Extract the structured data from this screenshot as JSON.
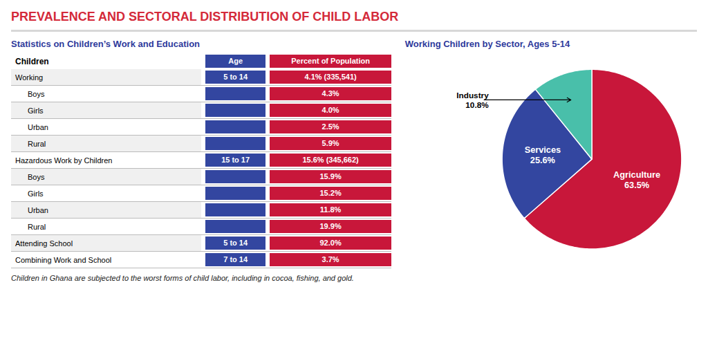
{
  "title": "PREVALENCE AND SECTORAL DISTRIBUTION OF CHILD LABOR",
  "footer": "Children in Ghana are subjected to the worst forms of child labor, including in cocoa, fishing, and gold.",
  "chart_data": [
    {
      "type": "table",
      "title": "Statistics on Children’s Work and Education",
      "columns": [
        "Children",
        "Age",
        "Percent of Population"
      ],
      "colors": [
        "#3346a0",
        "#c8173a"
      ],
      "rows": [
        {
          "label": "Working",
          "age": "5 to 14",
          "pct": "4.1% (335,541)"
        },
        {
          "label": "Boys",
          "age": null,
          "pct": "4.3%"
        },
        {
          "label": "Girls",
          "age": null,
          "pct": "4.0%"
        },
        {
          "label": "Urban",
          "age": null,
          "pct": "2.5%"
        },
        {
          "label": "Rural",
          "age": null,
          "pct": "5.9%"
        },
        {
          "label": "Hazardous Work by Children",
          "age": "15 to 17",
          "pct": "15.6% (345,662)"
        },
        {
          "label": "Boys",
          "age": null,
          "pct": "15.9%"
        },
        {
          "label": "Girls",
          "age": null,
          "pct": "15.2%"
        },
        {
          "label": "Urban",
          "age": null,
          "pct": "11.8%"
        },
        {
          "label": "Rural",
          "age": null,
          "pct": "19.9%"
        },
        {
          "label": "Attending School",
          "age": "5 to 14",
          "pct": "92.0%"
        },
        {
          "label": "Combining Work and School",
          "age": "7 to 14",
          "pct": "3.7%"
        }
      ]
    },
    {
      "type": "pie",
      "title": "Working Children by Sector, Ages 5-14",
      "categories": [
        "Agriculture",
        "Services",
        "Industry"
      ],
      "values": [
        63.5,
        25.6,
        10.8
      ],
      "value_labels": [
        "63.5%",
        "25.6%",
        "10.8%"
      ],
      "colors": [
        "#c8173a",
        "#3346a0",
        "#49bfaa"
      ],
      "data_labels": true
    }
  ]
}
